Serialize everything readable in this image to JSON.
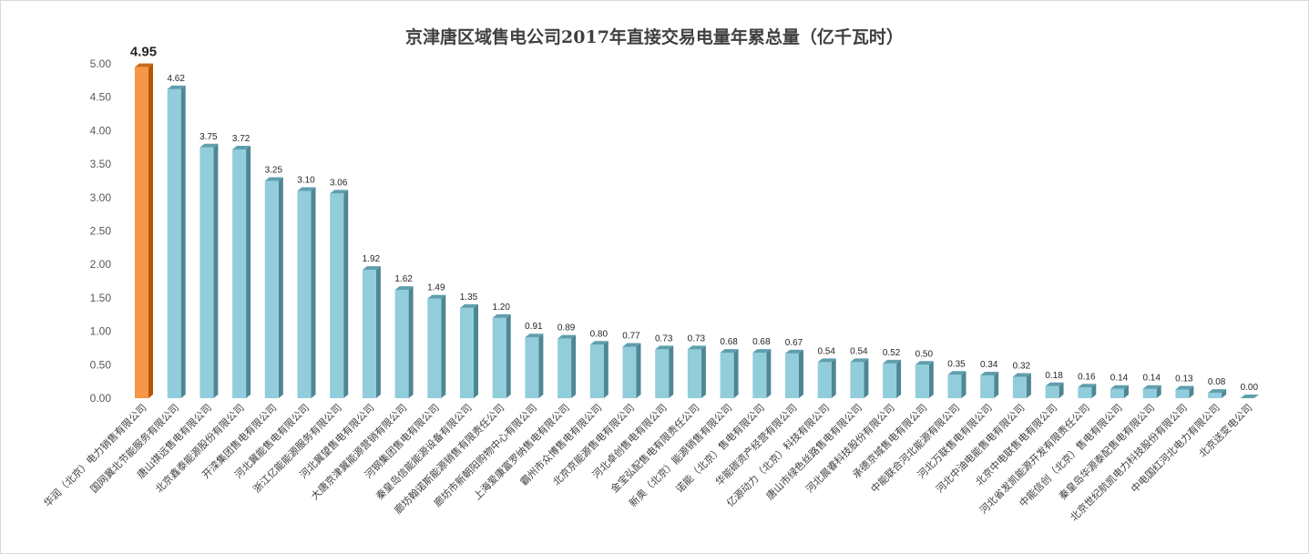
{
  "chart_data": {
    "type": "bar",
    "title": "京津唐区域售电公司2017年直接交易电量年累总量（亿千瓦时）",
    "xlabel": "",
    "ylabel": "",
    "ylim": [
      0,
      5
    ],
    "yticks": [
      "0.00",
      "0.50",
      "1.00",
      "1.50",
      "2.00",
      "2.50",
      "3.00",
      "3.50",
      "4.00",
      "4.50",
      "5.00"
    ],
    "grid": false,
    "legend": "none",
    "categories": [
      "华润（北京）电力销售有限公司",
      "国网冀北节能服务有限公司",
      "唐山祺远售电有限公司",
      "北京鑫泰能源股份有限公司",
      "开滦集团售电有限公司",
      "河北冀能售电有限公司",
      "浙江亿能能源服务有限公司",
      "河北冀望售电有限公司",
      "大唐京津冀能源营销有限公司",
      "河钢集团售电有限公司",
      "秦皇岛信能能源设备有限公司",
      "廊坊翰诺斯能源销售有限责任公司",
      "廊坊市新朝阳购物中心有限公司",
      "上海爱康富罗纳售电有限公司",
      "霸州市众博售电有限公司",
      "北京京能源售电有限公司",
      "河北卓创售电有限公司",
      "金宝弘配售电有限责任公司",
      "新奥（北京）能源销售有限公司",
      "诺能（北京）售电有限公司",
      "华能碳资产经营有限公司",
      "亿源动力（北京）科技有限公司",
      "唐山市绿色丝路售电有限公司",
      "河北晨睿科技股份有限公司",
      "承德京城售电有限公司",
      "中能联合河北能源有限公司",
      "河北万联售电有限公司",
      "河北中油电能售电有限公司",
      "北京中电联售电有限公司",
      "河北省发凯能源开发有限责任公司",
      "中能信创（北京）售电有限公司",
      "秦皇岛华源泰配售电有限公司",
      "北京世纪航凯电力科技股份有限公司",
      "中电国红河北电力有限公司",
      "北京送变电公司"
    ],
    "values": [
      4.95,
      4.62,
      3.75,
      3.72,
      3.25,
      3.1,
      3.06,
      1.92,
      1.62,
      1.49,
      1.35,
      1.2,
      0.91,
      0.89,
      0.8,
      0.77,
      0.73,
      0.73,
      0.68,
      0.68,
      0.67,
      0.54,
      0.54,
      0.52,
      0.5,
      0.35,
      0.34,
      0.32,
      0.18,
      0.16,
      0.14,
      0.14,
      0.13,
      0.08,
      0.0
    ],
    "highlight_index": 0,
    "colors": {
      "bar_front": "#92CDDC",
      "bar_side": "#4F8694",
      "bar_top": "#5F9FAE",
      "highlight_front": "#F79646",
      "highlight_side": "#B65708",
      "highlight_top": "#C96A1A",
      "axis": "#bfbfbf"
    }
  }
}
